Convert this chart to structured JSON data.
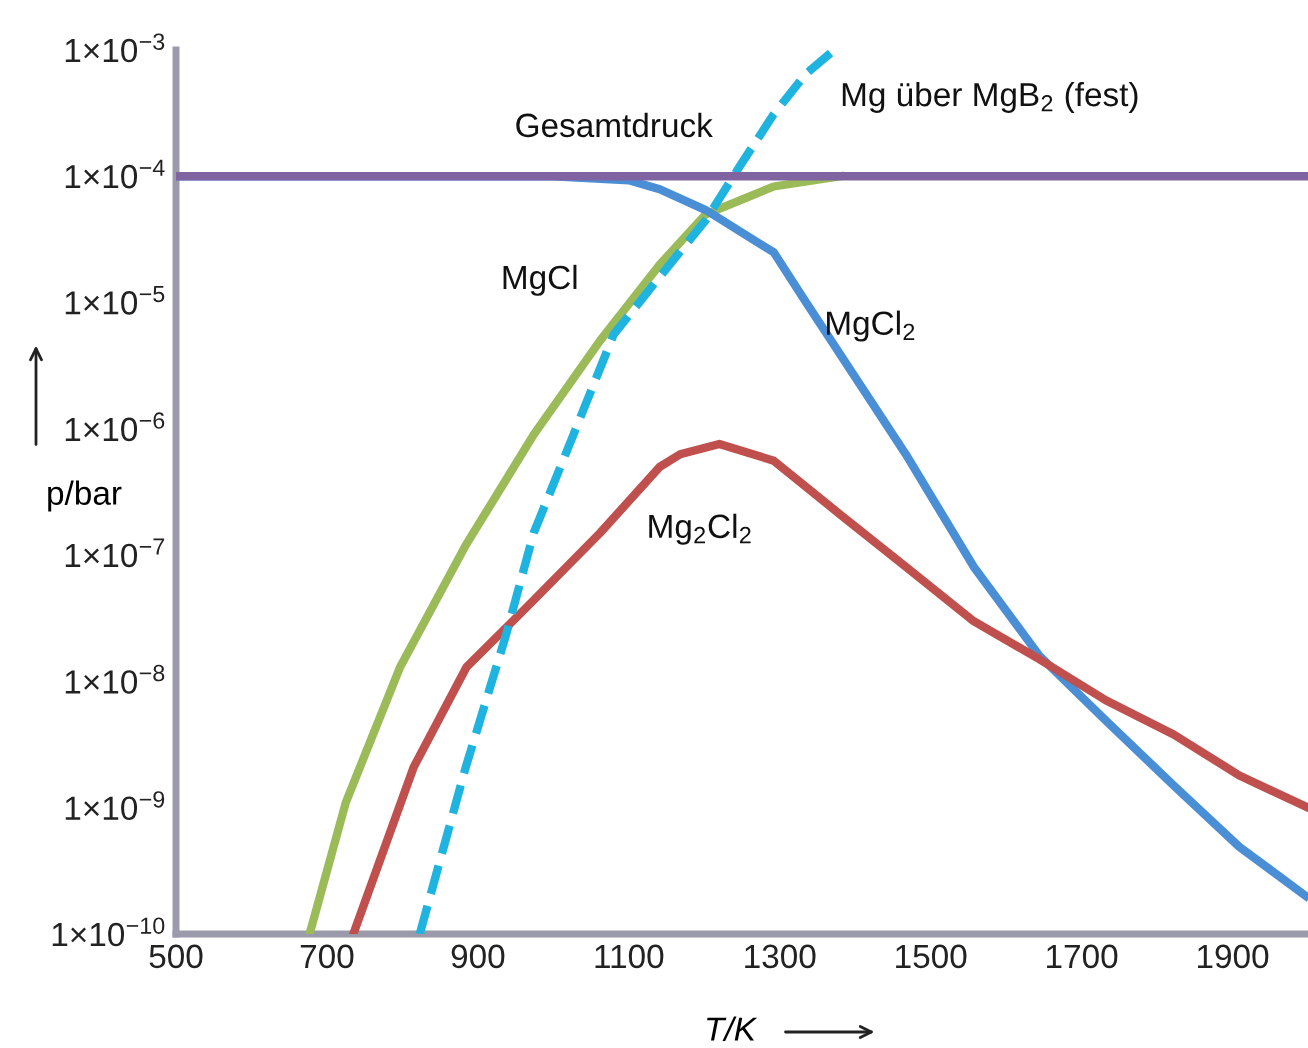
{
  "chart_data": {
    "type": "line",
    "xlabel": "T/K",
    "ylabel": "p/bar",
    "log": "y",
    "grid": false,
    "legend": false,
    "line_style": "solid",
    "marker": "none",
    "xlim": [
      500,
      2000
    ],
    "xticks": [
      500,
      700,
      900,
      1100,
      1300,
      1500,
      1700,
      1900
    ],
    "ylim": [
      1e-10,
      0.001
    ],
    "yticks": [
      {
        "value": 1e-10,
        "label": "1×10$^{−10}$"
      },
      {
        "value": 1e-09,
        "label": "1×10$^{−9}$"
      },
      {
        "value": 1e-08,
        "label": "1×10$^{−8}$"
      },
      {
        "value": 1e-07,
        "label": "1×10$^{−7}$"
      },
      {
        "value": 1e-06,
        "label": "1×10$^{−6}$"
      },
      {
        "value": 1e-05,
        "label": "1×10$^{−5}$"
      },
      {
        "value": 0.0001,
        "label": "1×10$^{−4}$"
      },
      {
        "value": 0.001,
        "label": "1×10$^{−3}$"
      }
    ],
    "series": [
      {
        "name": "Gesamtdruck",
        "color": "#8064a2",
        "x": [
          500,
          2000
        ],
        "values": [
          0.0001,
          0.0001
        ]
      },
      {
        "name": "MgCl",
        "color": "#9bbb59",
        "x": [
          677,
          725,
          797,
          884,
          974,
          1062,
          1141,
          1202,
          1292,
          1380
        ],
        "values": [
          1e-10,
          1.1e-09,
          1.3e-08,
          1.2e-07,
          9e-07,
          5e-06,
          2e-05,
          5e-05,
          8.3e-05,
          0.0001
        ]
      },
      {
        "name": "MgCl$_{2}$",
        "color": "#4a8fd6",
        "x": [
          500,
          1000,
          1100,
          1141,
          1202,
          1292,
          1335,
          1380,
          1467,
          1557,
          1644,
          1732,
          1822,
          1909,
          1997
        ],
        "values": [
          0.0001,
          0.0001,
          9.3e-05,
          7.9e-05,
          5.4e-05,
          2.5e-05,
          1e-05,
          3.9e-06,
          6.3e-07,
          8.1e-08,
          1.6e-08,
          4.9e-09,
          1.5e-09,
          4.9e-10,
          2e-10
        ]
      },
      {
        "name": "Mg$_{2}$Cl$_{2}$",
        "color": "#c0504d",
        "x": [
          735,
          815,
          885,
          974,
          1062,
          1141,
          1168,
          1220,
          1292,
          1380,
          1467,
          1557,
          1644,
          1732,
          1822,
          1909,
          2000
        ],
        "values": [
          1e-10,
          2.1e-09,
          1.3e-08,
          4.4e-08,
          1.5e-07,
          5e-07,
          6.3e-07,
          7.6e-07,
          5.6e-07,
          2.1e-07,
          8.1e-08,
          3e-08,
          1.5e-08,
          7.1e-09,
          3.8e-09,
          1.8e-09,
          1e-09
        ]
      },
      {
        "name": "Mg über MgB$_{2}$ (fest)",
        "color": "#1fb4e0",
        "line_style": "dashed",
        "x": [
          823,
          884,
          937,
          974,
          1027,
          1080,
          1141,
          1202,
          1247,
          1292,
          1335,
          1372
        ],
        "values": [
          1e-10,
          2.1e-09,
          2.3e-08,
          1.5e-07,
          9.1e-07,
          5.6e-06,
          1.6e-05,
          4.5e-05,
          0.00012,
          0.00031,
          0.00065,
          0.001
        ]
      }
    ]
  }
}
